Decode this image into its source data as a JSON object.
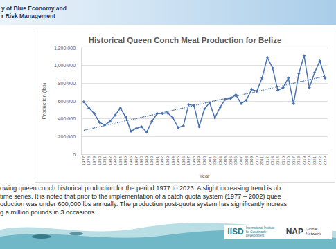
{
  "slide": {
    "header": [
      "y of Blue Economy and",
      "r Risk Management"
    ],
    "caption": [
      "owing queen conch historical production for the period 1977 to 2023. A slight increasing trend is ob",
      "time series. It is noted that prior to the implementation of a catch quota system (1977 – 2002) quee",
      "oduction was under 600,000 lbs annually. The production post-quota system has significantly increas",
      "g a million pounds in 3 occasions."
    ],
    "logos": [
      {
        "name": "IISD",
        "subtitle": "International Institute for Sustainable Development"
      },
      {
        "name": "NAP",
        "subtitle": "Global Network"
      }
    ]
  },
  "chart_data": {
    "type": "line",
    "title": "Historical Queen Conch Meat Production for Belize",
    "x_label": "Year",
    "y_label": "Production (lbs)",
    "categories": [
      "1977",
      "1978",
      "1979",
      "1980",
      "1981",
      "1982",
      "1983",
      "1984",
      "1985",
      "1986",
      "1987",
      "1988",
      "1989",
      "1990",
      "1991",
      "1992",
      "1993",
      "1994",
      "1995",
      "1996",
      "1997",
      "1998",
      "1999",
      "2000",
      "2001",
      "2002",
      "2003",
      "2004",
      "2005",
      "2006",
      "2007",
      "2008",
      "2009",
      "2010",
      "2011",
      "2012",
      "2013",
      "2014",
      "2015",
      "2016",
      "2017",
      "2018",
      "2019",
      "2020",
      "2021",
      "2022",
      "2023"
    ],
    "series": [
      {
        "color": "#4a72b0",
        "marker": "diamond",
        "values": [
          590000,
          520000,
          460000,
          360000,
          330000,
          370000,
          440000,
          520000,
          420000,
          260000,
          290000,
          310000,
          250000,
          370000,
          460000,
          460000,
          465000,
          410000,
          300000,
          320000,
          560000,
          550000,
          310000,
          510000,
          580000,
          410000,
          530000,
          620000,
          630000,
          670000,
          570000,
          610000,
          730000,
          710000,
          860000,
          1090000,
          970000,
          720000,
          750000,
          860000,
          570000,
          910000,
          1110000,
          750000,
          920000,
          1050000,
          860000
        ]
      }
    ],
    "trendline": {
      "values": [
        270000,
        880000
      ],
      "color": "#4a72b0",
      "line_style": "dotted"
    },
    "ylim": [
      0,
      1200000
    ],
    "yticks": [
      0,
      {
        "value": 200000,
        "label": "200,000"
      },
      {
        "value": 400000,
        "label": "400,000"
      },
      {
        "value": 600000,
        "label": "600,000"
      },
      {
        "value": 800000,
        "label": "800,000"
      },
      {
        "value": 1000000,
        "label": "1,000,000"
      },
      {
        "value": 1200000,
        "label": "1,200,000"
      }
    ],
    "grid": true
  }
}
